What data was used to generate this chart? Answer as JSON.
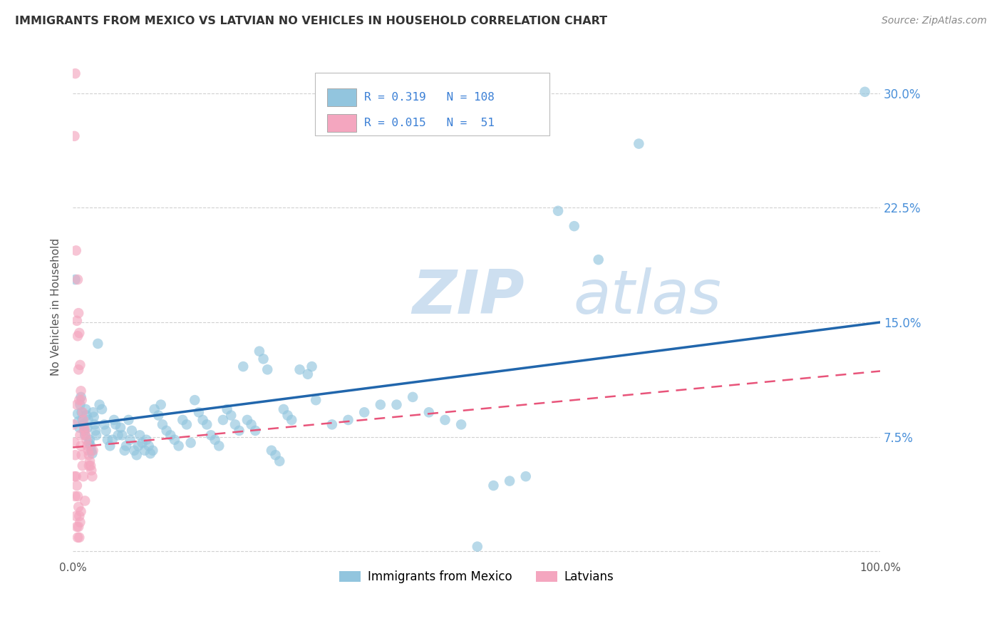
{
  "title": "IMMIGRANTS FROM MEXICO VS LATVIAN NO VEHICLES IN HOUSEHOLD CORRELATION CHART",
  "source": "Source: ZipAtlas.com",
  "ylabel": "No Vehicles in Household",
  "xlim": [
    0,
    1.0
  ],
  "ylim": [
    -0.005,
    0.325
  ],
  "legend_label_blue": "Immigrants from Mexico",
  "legend_label_pink": "Latvians",
  "blue_color": "#92c5de",
  "pink_color": "#f4a6bf",
  "trend_blue_color": "#2166ac",
  "trend_pink_color": "#e8547a",
  "watermark_zip": "ZIP",
  "watermark_atlas": "atlas",
  "watermark_color": "#cddff0",
  "blue_scatter": [
    [
      0.003,
      0.178
    ],
    [
      0.006,
      0.09
    ],
    [
      0.007,
      0.085
    ],
    [
      0.008,
      0.081
    ],
    [
      0.009,
      0.096
    ],
    [
      0.01,
      0.101
    ],
    [
      0.011,
      0.091
    ],
    [
      0.012,
      0.086
    ],
    [
      0.013,
      0.083
    ],
    [
      0.014,
      0.079
    ],
    [
      0.015,
      0.076
    ],
    [
      0.016,
      0.093
    ],
    [
      0.017,
      0.089
    ],
    [
      0.018,
      0.081
    ],
    [
      0.019,
      0.086
    ],
    [
      0.02,
      0.071
    ],
    [
      0.021,
      0.073
    ],
    [
      0.022,
      0.069
    ],
    [
      0.023,
      0.066
    ],
    [
      0.024,
      0.064
    ],
    [
      0.025,
      0.091
    ],
    [
      0.026,
      0.088
    ],
    [
      0.027,
      0.083
    ],
    [
      0.028,
      0.079
    ],
    [
      0.029,
      0.076
    ],
    [
      0.031,
      0.136
    ],
    [
      0.033,
      0.096
    ],
    [
      0.036,
      0.093
    ],
    [
      0.039,
      0.083
    ],
    [
      0.041,
      0.079
    ],
    [
      0.043,
      0.073
    ],
    [
      0.046,
      0.069
    ],
    [
      0.049,
      0.073
    ],
    [
      0.051,
      0.086
    ],
    [
      0.053,
      0.083
    ],
    [
      0.056,
      0.076
    ],
    [
      0.059,
      0.081
    ],
    [
      0.061,
      0.076
    ],
    [
      0.064,
      0.066
    ],
    [
      0.066,
      0.069
    ],
    [
      0.069,
      0.086
    ],
    [
      0.071,
      0.073
    ],
    [
      0.073,
      0.079
    ],
    [
      0.076,
      0.066
    ],
    [
      0.079,
      0.063
    ],
    [
      0.081,
      0.069
    ],
    [
      0.083,
      0.076
    ],
    [
      0.086,
      0.071
    ],
    [
      0.089,
      0.066
    ],
    [
      0.091,
      0.073
    ],
    [
      0.094,
      0.069
    ],
    [
      0.096,
      0.064
    ],
    [
      0.099,
      0.066
    ],
    [
      0.101,
      0.093
    ],
    [
      0.106,
      0.089
    ],
    [
      0.109,
      0.096
    ],
    [
      0.111,
      0.083
    ],
    [
      0.116,
      0.079
    ],
    [
      0.121,
      0.076
    ],
    [
      0.126,
      0.073
    ],
    [
      0.131,
      0.069
    ],
    [
      0.136,
      0.086
    ],
    [
      0.141,
      0.083
    ],
    [
      0.146,
      0.071
    ],
    [
      0.151,
      0.099
    ],
    [
      0.156,
      0.091
    ],
    [
      0.161,
      0.086
    ],
    [
      0.166,
      0.083
    ],
    [
      0.171,
      0.076
    ],
    [
      0.176,
      0.073
    ],
    [
      0.181,
      0.069
    ],
    [
      0.186,
      0.086
    ],
    [
      0.191,
      0.093
    ],
    [
      0.196,
      0.089
    ],
    [
      0.201,
      0.083
    ],
    [
      0.206,
      0.079
    ],
    [
      0.211,
      0.121
    ],
    [
      0.216,
      0.086
    ],
    [
      0.221,
      0.083
    ],
    [
      0.226,
      0.079
    ],
    [
      0.231,
      0.131
    ],
    [
      0.236,
      0.126
    ],
    [
      0.241,
      0.119
    ],
    [
      0.246,
      0.066
    ],
    [
      0.251,
      0.063
    ],
    [
      0.256,
      0.059
    ],
    [
      0.261,
      0.093
    ],
    [
      0.266,
      0.089
    ],
    [
      0.271,
      0.086
    ],
    [
      0.281,
      0.119
    ],
    [
      0.291,
      0.116
    ],
    [
      0.296,
      0.121
    ],
    [
      0.301,
      0.099
    ],
    [
      0.321,
      0.083
    ],
    [
      0.341,
      0.086
    ],
    [
      0.361,
      0.091
    ],
    [
      0.381,
      0.096
    ],
    [
      0.401,
      0.096
    ],
    [
      0.421,
      0.101
    ],
    [
      0.441,
      0.091
    ],
    [
      0.461,
      0.086
    ],
    [
      0.481,
      0.083
    ],
    [
      0.501,
      0.003
    ],
    [
      0.521,
      0.043
    ],
    [
      0.541,
      0.046
    ],
    [
      0.561,
      0.049
    ],
    [
      0.601,
      0.223
    ],
    [
      0.621,
      0.213
    ],
    [
      0.651,
      0.191
    ],
    [
      0.701,
      0.267
    ],
    [
      0.981,
      0.301
    ]
  ],
  "pink_scatter": [
    [
      0.002,
      0.272
    ],
    [
      0.003,
      0.313
    ],
    [
      0.004,
      0.197
    ],
    [
      0.005,
      0.096
    ],
    [
      0.006,
      0.178
    ],
    [
      0.007,
      0.156
    ],
    [
      0.008,
      0.143
    ],
    [
      0.009,
      0.122
    ],
    [
      0.01,
      0.105
    ],
    [
      0.011,
      0.099
    ],
    [
      0.012,
      0.091
    ],
    [
      0.013,
      0.086
    ],
    [
      0.014,
      0.081
    ],
    [
      0.015,
      0.079
    ],
    [
      0.016,
      0.076
    ],
    [
      0.017,
      0.073
    ],
    [
      0.018,
      0.069
    ],
    [
      0.019,
      0.066
    ],
    [
      0.02,
      0.063
    ],
    [
      0.021,
      0.059
    ],
    [
      0.022,
      0.056
    ],
    [
      0.023,
      0.053
    ],
    [
      0.024,
      0.049
    ],
    [
      0.005,
      0.151
    ],
    [
      0.006,
      0.141
    ],
    [
      0.007,
      0.119
    ],
    [
      0.008,
      0.099
    ],
    [
      0.009,
      0.076
    ],
    [
      0.01,
      0.069
    ],
    [
      0.011,
      0.063
    ],
    [
      0.012,
      0.056
    ],
    [
      0.013,
      0.049
    ],
    [
      0.001,
      0.083
    ],
    [
      0.002,
      0.071
    ],
    [
      0.003,
      0.063
    ],
    [
      0.004,
      0.049
    ],
    [
      0.005,
      0.043
    ],
    [
      0.006,
      0.036
    ],
    [
      0.007,
      0.029
    ],
    [
      0.008,
      0.023
    ],
    [
      0.002,
      0.049
    ],
    [
      0.003,
      0.036
    ],
    [
      0.004,
      0.023
    ],
    [
      0.005,
      0.016
    ],
    [
      0.006,
      0.009
    ],
    [
      0.007,
      0.016
    ],
    [
      0.008,
      0.009
    ],
    [
      0.009,
      0.019
    ],
    [
      0.01,
      0.026
    ],
    [
      0.015,
      0.033
    ],
    [
      0.02,
      0.056
    ],
    [
      0.025,
      0.066
    ]
  ],
  "blue_trend_x": [
    0.0,
    1.0
  ],
  "blue_trend_y": [
    0.082,
    0.15
  ],
  "pink_trend_x": [
    0.0,
    1.0
  ],
  "pink_trend_y": [
    0.068,
    0.118
  ]
}
